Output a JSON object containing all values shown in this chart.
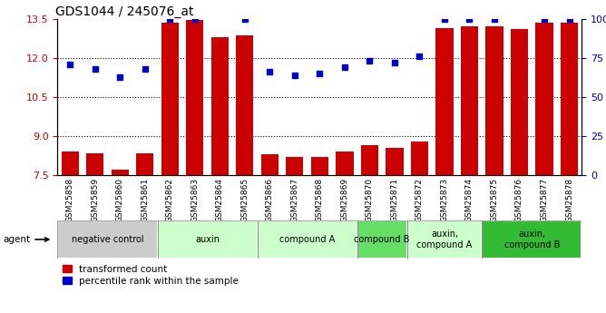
{
  "title": "GDS1044 / 245076_at",
  "samples": [
    "GSM25858",
    "GSM25859",
    "GSM25860",
    "GSM25861",
    "GSM25862",
    "GSM25863",
    "GSM25864",
    "GSM25865",
    "GSM25866",
    "GSM25867",
    "GSM25868",
    "GSM25869",
    "GSM25870",
    "GSM25871",
    "GSM25872",
    "GSM25873",
    "GSM25874",
    "GSM25875",
    "GSM25876",
    "GSM25877",
    "GSM25878"
  ],
  "bar_values": [
    8.4,
    8.35,
    7.7,
    8.35,
    13.35,
    13.45,
    12.8,
    12.85,
    8.3,
    8.2,
    8.2,
    8.4,
    8.65,
    8.55,
    8.8,
    13.15,
    13.2,
    13.2,
    13.1,
    13.35,
    13.35
  ],
  "dot_values": [
    71,
    68,
    63,
    68,
    100,
    100,
    null,
    100,
    66,
    64,
    65,
    69,
    73,
    72,
    76,
    100,
    100,
    100,
    null,
    100,
    100
  ],
  "bar_color": "#cc0000",
  "dot_color": "#0000cc",
  "ylim_left": [
    7.5,
    13.5
  ],
  "ylim_right": [
    0,
    100
  ],
  "yticks_left": [
    7.5,
    9.0,
    10.5,
    12.0,
    13.5
  ],
  "yticks_right": [
    0,
    25,
    50,
    75,
    100
  ],
  "ytick_labels_right": [
    "0",
    "25",
    "50",
    "75",
    "100%"
  ],
  "grid_lines": [
    9.0,
    10.5,
    12.0
  ],
  "groups": [
    {
      "label": "negative control",
      "start": 0,
      "end": 4,
      "color": "#cccccc"
    },
    {
      "label": "auxin",
      "start": 4,
      "end": 8,
      "color": "#ccffcc"
    },
    {
      "label": "compound A",
      "start": 8,
      "end": 12,
      "color": "#ccffcc"
    },
    {
      "label": "compound B",
      "start": 12,
      "end": 14,
      "color": "#66dd66"
    },
    {
      "label": "auxin,\ncompound A",
      "start": 14,
      "end": 17,
      "color": "#ccffcc"
    },
    {
      "label": "auxin,\ncompound B",
      "start": 17,
      "end": 21,
      "color": "#33bb33"
    }
  ],
  "legend_bar_label": "transformed count",
  "legend_dot_label": "percentile rank within the sample",
  "agent_label": "agent"
}
